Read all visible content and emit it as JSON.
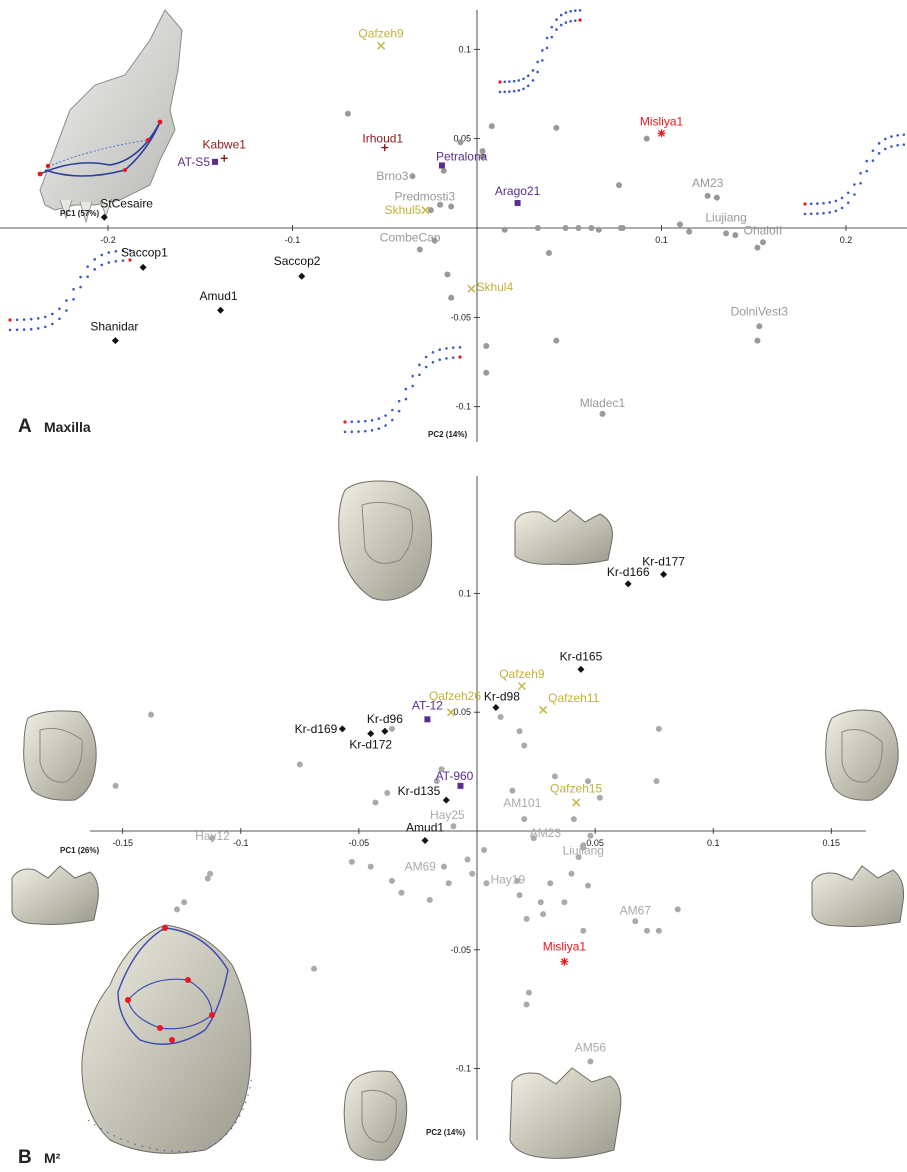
{
  "chart_data": [
    {
      "type": "scatter",
      "panel_letter": "A",
      "panel_title": "Maxilla",
      "xlabel": "PC1 (57%)",
      "ylabel": "PC2 (14%)",
      "xlim": [
        -0.235,
        0.235
      ],
      "ylim": [
        -0.12,
        0.124
      ],
      "xticks": [
        -0.2,
        -0.1,
        0.1,
        0.2
      ],
      "yticks": [
        0.1,
        0.05,
        -0.05,
        -0.1
      ],
      "xtick_labels": [
        "-0.2",
        "-0.1",
        "0.1",
        "0.2"
      ],
      "ytick_labels": [
        "0.1",
        "0.05",
        "-0.05",
        "-0.1"
      ],
      "grid": false,
      "colors": {
        "recent": "#999999",
        "neanderthal": "#111111",
        "qafzeh_skhul": "#c2b23a",
        "atapuerca": "#5b2d90",
        "archaic": "#8b1a1a",
        "misliya": "#e8191c"
      },
      "points": [
        {
          "x": -0.07,
          "y": 0.064,
          "marker": "circle",
          "color": "#999999"
        },
        {
          "x": -0.018,
          "y": 0.032,
          "marker": "circle",
          "color": "#999999"
        },
        {
          "x": -0.009,
          "y": 0.048,
          "marker": "circle",
          "color": "#999999"
        },
        {
          "x": 0.008,
          "y": 0.057,
          "marker": "circle",
          "color": "#999999"
        },
        {
          "x": 0.003,
          "y": 0.043,
          "marker": "circle",
          "color": "#999999"
        },
        {
          "x": 0.003,
          "y": 0.04,
          "marker": "circle",
          "color": "#999999"
        },
        {
          "x": -0.02,
          "y": 0.013,
          "marker": "circle",
          "color": "#999999"
        },
        {
          "x": -0.025,
          "y": 0.01,
          "marker": "circle",
          "color": "#999999"
        },
        {
          "x": -0.023,
          "y": -0.007,
          "marker": "circle",
          "color": "#999999"
        },
        {
          "x": -0.016,
          "y": -0.026,
          "marker": "circle",
          "color": "#999999"
        },
        {
          "x": -0.014,
          "y": -0.039,
          "marker": "circle",
          "color": "#999999"
        },
        {
          "x": 0.005,
          "y": -0.066,
          "marker": "circle",
          "color": "#999999"
        },
        {
          "x": 0.005,
          "y": -0.081,
          "marker": "circle",
          "color": "#999999"
        },
        {
          "x": 0.015,
          "y": -0.001,
          "marker": "circle",
          "color": "#999999"
        },
        {
          "x": 0.033,
          "y": 0.0,
          "marker": "circle",
          "color": "#999999"
        },
        {
          "x": 0.039,
          "y": -0.014,
          "marker": "circle",
          "color": "#999999"
        },
        {
          "x": 0.043,
          "y": 0.056,
          "marker": "circle",
          "color": "#999999"
        },
        {
          "x": 0.062,
          "y": 0.0,
          "marker": "circle",
          "color": "#999999"
        },
        {
          "x": 0.078,
          "y": 0.0,
          "marker": "circle",
          "color": "#999999"
        },
        {
          "x": 0.077,
          "y": 0.024,
          "marker": "circle",
          "color": "#999999"
        },
        {
          "x": 0.079,
          "y": 0.0,
          "marker": "circle",
          "color": "#999999"
        },
        {
          "x": 0.092,
          "y": 0.05,
          "marker": "circle",
          "color": "#999999"
        },
        {
          "x": 0.043,
          "y": -0.063,
          "marker": "circle",
          "color": "#999999"
        },
        {
          "x": 0.11,
          "y": 0.002,
          "marker": "circle",
          "color": "#999999"
        },
        {
          "x": 0.115,
          "y": -0.002,
          "marker": "circle",
          "color": "#999999"
        },
        {
          "x": 0.13,
          "y": 0.017,
          "marker": "circle",
          "color": "#999999"
        },
        {
          "x": 0.14,
          "y": -0.004,
          "marker": "circle",
          "color": "#999999"
        },
        {
          "x": 0.152,
          "y": -0.011,
          "marker": "circle",
          "color": "#999999"
        },
        {
          "x": 0.152,
          "y": -0.063,
          "marker": "circle",
          "color": "#999999"
        },
        {
          "x": 0.048,
          "y": 0.0,
          "marker": "circle",
          "color": "#999999"
        },
        {
          "x": 0.055,
          "y": 0.0,
          "marker": "circle",
          "color": "#999999"
        },
        {
          "x": 0.066,
          "y": -0.001,
          "marker": "circle",
          "color": "#999999"
        }
      ],
      "labeled": [
        {
          "name": "Qafzeh9",
          "x": -0.052,
          "y": 0.102,
          "marker": "x",
          "color": "#c2b23a"
        },
        {
          "name": "Misliya1",
          "x": 0.1,
          "y": 0.053,
          "marker": "asterisk",
          "color": "#e8191c"
        },
        {
          "name": "Irhoud1",
          "x": -0.05,
          "y": 0.045,
          "marker": "plus",
          "color": "#8b1a1a"
        },
        {
          "name": "Kabwe1",
          "x": -0.137,
          "y": 0.039,
          "marker": "plus",
          "color": "#8b1a1a"
        },
        {
          "name": "AT-S5",
          "x": -0.142,
          "y": 0.037,
          "marker": "square",
          "color": "#5b2d90"
        },
        {
          "name": "Petralona",
          "x": -0.019,
          "y": 0.035,
          "marker": "square",
          "color": "#5b2d90"
        },
        {
          "name": "Brno3",
          "x": -0.035,
          "y": 0.029,
          "marker": "circle",
          "color": "#999999"
        },
        {
          "name": "Arago21",
          "x": 0.022,
          "y": 0.014,
          "marker": "square",
          "color": "#5b2d90"
        },
        {
          "name": "AM23",
          "x": 0.125,
          "y": 0.018,
          "marker": "circle",
          "color": "#999999"
        },
        {
          "name": "Predmosti3",
          "x": -0.014,
          "y": 0.012,
          "marker": "circle",
          "color": "#999999"
        },
        {
          "name": "StCesaire",
          "x": -0.202,
          "y": 0.006,
          "marker": "diamond",
          "color": "#111111"
        },
        {
          "name": "Skhul5",
          "x": -0.028,
          "y": 0.01,
          "marker": "x",
          "color": "#c2b23a"
        },
        {
          "name": "Liujiang",
          "x": 0.135,
          "y": -0.003,
          "marker": "circle",
          "color": "#999999"
        },
        {
          "name": "OhaloII",
          "x": 0.155,
          "y": -0.008,
          "marker": "circle",
          "color": "#999999"
        },
        {
          "name": "Saccop1",
          "x": -0.181,
          "y": -0.022,
          "marker": "diamond",
          "color": "#111111"
        },
        {
          "name": "Saccop2",
          "x": -0.095,
          "y": -0.027,
          "marker": "diamond",
          "color": "#111111"
        },
        {
          "name": "CombeCap",
          "x": -0.031,
          "y": -0.012,
          "marker": "circle",
          "color": "#999999"
        },
        {
          "name": "Skhul4",
          "x": -0.003,
          "y": -0.034,
          "marker": "x",
          "color": "#c2b23a"
        },
        {
          "name": "Amud1",
          "x": -0.139,
          "y": -0.046,
          "marker": "diamond",
          "color": "#111111"
        },
        {
          "name": "Shanidar",
          "x": -0.196,
          "y": -0.063,
          "marker": "diamond",
          "color": "#111111"
        },
        {
          "name": "DolniVest3",
          "x": 0.153,
          "y": -0.055,
          "marker": "circle",
          "color": "#999999"
        },
        {
          "name": "Mladec1",
          "x": 0.068,
          "y": -0.104,
          "marker": "circle",
          "color": "#999999"
        }
      ]
    },
    {
      "type": "scatter",
      "panel_letter": "B",
      "panel_title": "M²",
      "xlabel": "PC1 (26%)",
      "ylabel": "PC2 (14%)",
      "xlim": [
        -0.165,
        0.165
      ],
      "ylim": [
        -0.128,
        0.128
      ],
      "xticks": [
        -0.15,
        -0.1,
        -0.05,
        0.05,
        0.1,
        0.15
      ],
      "yticks": [
        0.1,
        0.05,
        -0.05,
        -0.1
      ],
      "xtick_labels": [
        "-0.15",
        "-0.1",
        "-0.05",
        "0.05",
        "0.1",
        "0.15"
      ],
      "ytick_labels": [
        "0.1",
        "0.05",
        "-0.05",
        "-0.1"
      ],
      "grid": false,
      "colors": {
        "recent": "#aaaaaa",
        "krapina": "#111111",
        "qafzeh": "#c2b23a",
        "atapuerca": "#5b2d90",
        "misliya": "#e8191c"
      },
      "points": [
        {
          "x": -0.138,
          "y": 0.049,
          "marker": "circle",
          "color": "#aaaaaa"
        },
        {
          "x": -0.153,
          "y": 0.019,
          "marker": "circle",
          "color": "#aaaaaa"
        },
        {
          "x": -0.075,
          "y": 0.028,
          "marker": "circle",
          "color": "#aaaaaa"
        },
        {
          "x": -0.113,
          "y": -0.018,
          "marker": "circle",
          "color": "#aaaaaa"
        },
        {
          "x": -0.114,
          "y": -0.02,
          "marker": "circle",
          "color": "#aaaaaa"
        },
        {
          "x": -0.124,
          "y": -0.03,
          "marker": "circle",
          "color": "#aaaaaa"
        },
        {
          "x": -0.127,
          "y": -0.033,
          "marker": "circle",
          "color": "#aaaaaa"
        },
        {
          "x": -0.069,
          "y": -0.058,
          "marker": "circle",
          "color": "#aaaaaa"
        },
        {
          "x": -0.036,
          "y": 0.043,
          "marker": "circle",
          "color": "#aaaaaa"
        },
        {
          "x": -0.038,
          "y": 0.016,
          "marker": "circle",
          "color": "#aaaaaa"
        },
        {
          "x": -0.043,
          "y": 0.012,
          "marker": "circle",
          "color": "#aaaaaa"
        },
        {
          "x": -0.015,
          "y": 0.026,
          "marker": "circle",
          "color": "#aaaaaa"
        },
        {
          "x": -0.017,
          "y": 0.021,
          "marker": "circle",
          "color": "#aaaaaa"
        },
        {
          "x": -0.053,
          "y": -0.013,
          "marker": "circle",
          "color": "#aaaaaa"
        },
        {
          "x": -0.045,
          "y": -0.015,
          "marker": "circle",
          "color": "#aaaaaa"
        },
        {
          "x": -0.036,
          "y": -0.021,
          "marker": "circle",
          "color": "#aaaaaa"
        },
        {
          "x": -0.032,
          "y": -0.026,
          "marker": "circle",
          "color": "#aaaaaa"
        },
        {
          "x": -0.02,
          "y": -0.029,
          "marker": "circle",
          "color": "#aaaaaa"
        },
        {
          "x": -0.012,
          "y": -0.022,
          "marker": "circle",
          "color": "#aaaaaa"
        },
        {
          "x": -0.004,
          "y": -0.012,
          "marker": "circle",
          "color": "#aaaaaa"
        },
        {
          "x": -0.002,
          "y": -0.018,
          "marker": "circle",
          "color": "#aaaaaa"
        },
        {
          "x": 0.003,
          "y": -0.008,
          "marker": "circle",
          "color": "#aaaaaa"
        },
        {
          "x": 0.01,
          "y": 0.048,
          "marker": "circle",
          "color": "#aaaaaa"
        },
        {
          "x": 0.018,
          "y": 0.042,
          "marker": "circle",
          "color": "#aaaaaa"
        },
        {
          "x": 0.02,
          "y": 0.036,
          "marker": "circle",
          "color": "#aaaaaa"
        },
        {
          "x": 0.015,
          "y": 0.017,
          "marker": "circle",
          "color": "#aaaaaa"
        },
        {
          "x": 0.033,
          "y": 0.023,
          "marker": "circle",
          "color": "#aaaaaa"
        },
        {
          "x": 0.047,
          "y": 0.021,
          "marker": "circle",
          "color": "#aaaaaa"
        },
        {
          "x": 0.052,
          "y": 0.014,
          "marker": "circle",
          "color": "#aaaaaa"
        },
        {
          "x": 0.041,
          "y": 0.005,
          "marker": "circle",
          "color": "#aaaaaa"
        },
        {
          "x": 0.048,
          "y": -0.002,
          "marker": "circle",
          "color": "#aaaaaa"
        },
        {
          "x": 0.045,
          "y": -0.007,
          "marker": "circle",
          "color": "#aaaaaa"
        },
        {
          "x": 0.043,
          "y": -0.011,
          "marker": "circle",
          "color": "#aaaaaa"
        },
        {
          "x": 0.04,
          "y": -0.018,
          "marker": "circle",
          "color": "#aaaaaa"
        },
        {
          "x": 0.047,
          "y": -0.023,
          "marker": "circle",
          "color": "#aaaaaa"
        },
        {
          "x": 0.037,
          "y": -0.03,
          "marker": "circle",
          "color": "#aaaaaa"
        },
        {
          "x": 0.031,
          "y": -0.022,
          "marker": "circle",
          "color": "#aaaaaa"
        },
        {
          "x": 0.027,
          "y": -0.03,
          "marker": "circle",
          "color": "#aaaaaa"
        },
        {
          "x": 0.028,
          "y": -0.035,
          "marker": "circle",
          "color": "#aaaaaa"
        },
        {
          "x": 0.017,
          "y": -0.021,
          "marker": "circle",
          "color": "#aaaaaa"
        },
        {
          "x": 0.018,
          "y": -0.027,
          "marker": "circle",
          "color": "#aaaaaa"
        },
        {
          "x": 0.021,
          "y": -0.037,
          "marker": "circle",
          "color": "#aaaaaa"
        },
        {
          "x": 0.045,
          "y": -0.042,
          "marker": "circle",
          "color": "#aaaaaa"
        },
        {
          "x": 0.022,
          "y": -0.068,
          "marker": "circle",
          "color": "#aaaaaa"
        },
        {
          "x": 0.021,
          "y": -0.073,
          "marker": "circle",
          "color": "#aaaaaa"
        },
        {
          "x": 0.077,
          "y": 0.043,
          "marker": "circle",
          "color": "#aaaaaa"
        },
        {
          "x": 0.076,
          "y": 0.021,
          "marker": "circle",
          "color": "#aaaaaa"
        },
        {
          "x": 0.085,
          "y": -0.033,
          "marker": "circle",
          "color": "#aaaaaa"
        },
        {
          "x": 0.072,
          "y": -0.042,
          "marker": "circle",
          "color": "#aaaaaa"
        },
        {
          "x": 0.077,
          "y": -0.042,
          "marker": "circle",
          "color": "#aaaaaa"
        }
      ],
      "labeled": [
        {
          "name": "Kr-d177",
          "x": 0.079,
          "y": 0.108,
          "marker": "diamond",
          "color": "#111111"
        },
        {
          "name": "Kr-d166",
          "x": 0.064,
          "y": 0.104,
          "marker": "diamond",
          "color": "#111111"
        },
        {
          "name": "Kr-d165",
          "x": 0.044,
          "y": 0.068,
          "marker": "diamond",
          "color": "#111111"
        },
        {
          "name": "Qafzeh9",
          "x": 0.019,
          "y": 0.061,
          "marker": "x",
          "color": "#c2b23a"
        },
        {
          "name": "Qafzeh26",
          "x": -0.011,
          "y": 0.05,
          "marker": "x",
          "color": "#c2b23a"
        },
        {
          "name": "Kr-d98",
          "x": 0.008,
          "y": 0.052,
          "marker": "diamond",
          "color": "#111111"
        },
        {
          "name": "Qafzeh11",
          "x": 0.028,
          "y": 0.051,
          "marker": "x",
          "color": "#c2b23a"
        },
        {
          "name": "AT-12",
          "x": -0.021,
          "y": 0.047,
          "marker": "square",
          "color": "#5b2d90"
        },
        {
          "name": "Kr-d169",
          "x": -0.057,
          "y": 0.043,
          "marker": "diamond",
          "color": "#111111"
        },
        {
          "name": "Kr-d96",
          "x": -0.039,
          "y": 0.042,
          "marker": "diamond",
          "color": "#111111"
        },
        {
          "name": "Kr-d172",
          "x": -0.045,
          "y": 0.041,
          "marker": "diamond",
          "color": "#111111"
        },
        {
          "name": "AT-960",
          "x": -0.007,
          "y": 0.019,
          "marker": "square",
          "color": "#5b2d90"
        },
        {
          "name": "Kr-d135",
          "x": -0.013,
          "y": 0.013,
          "marker": "diamond",
          "color": "#111111"
        },
        {
          "name": "Qafzeh15",
          "x": 0.042,
          "y": 0.012,
          "marker": "x",
          "color": "#c2b23a"
        },
        {
          "name": "AM101",
          "x": 0.02,
          "y": 0.005,
          "marker": "circle",
          "color": "#aaaaaa"
        },
        {
          "name": "Hay25",
          "x": -0.01,
          "y": 0.002,
          "marker": "circle",
          "color": "#aaaaaa"
        },
        {
          "name": "Amud1",
          "x": -0.022,
          "y": -0.004,
          "marker": "diamond",
          "color": "#111111"
        },
        {
          "name": "Hay12",
          "x": -0.112,
          "y": -0.003,
          "marker": "circle",
          "color": "#aaaaaa"
        },
        {
          "name": "AM23",
          "x": 0.024,
          "y": -0.003,
          "marker": "circle",
          "color": "#aaaaaa"
        },
        {
          "name": "Liujiang",
          "x": 0.045,
          "y": -0.006,
          "marker": "circle",
          "color": "#aaaaaa"
        },
        {
          "name": "AM69",
          "x": -0.014,
          "y": -0.015,
          "marker": "circle",
          "color": "#aaaaaa"
        },
        {
          "name": "Hay19",
          "x": 0.004,
          "y": -0.022,
          "marker": "circle",
          "color": "#aaaaaa"
        },
        {
          "name": "AM67",
          "x": 0.067,
          "y": -0.038,
          "marker": "circle",
          "color": "#aaaaaa"
        },
        {
          "name": "Misliya1",
          "x": 0.037,
          "y": -0.055,
          "marker": "asterisk",
          "color": "#e8191c"
        },
        {
          "name": "AM56",
          "x": 0.048,
          "y": -0.097,
          "marker": "circle",
          "color": "#aaaaaa"
        }
      ]
    }
  ]
}
